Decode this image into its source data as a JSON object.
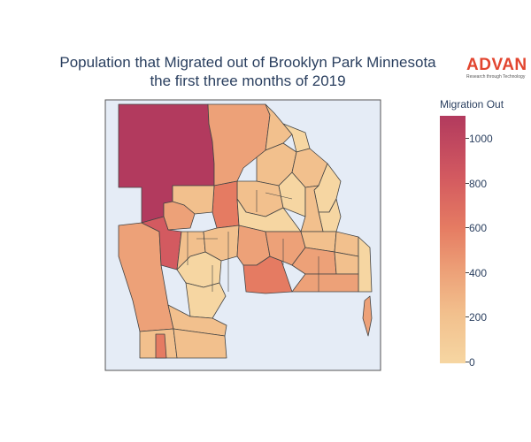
{
  "title": {
    "line1": "Population that Migrated out of Brooklyn Park Minnesota",
    "line2": "the first three months of 2019"
  },
  "logo": {
    "word": "ADVAN",
    "tagline": "Research through Technology",
    "color": "#e2452f"
  },
  "colorbar": {
    "title": "Migration Out",
    "ticks": [
      "1000",
      "800",
      "600",
      "400",
      "200",
      "0"
    ],
    "min": 0,
    "max": 1100,
    "colors": [
      "#f6d6a2",
      "#f2c08d",
      "#eda178",
      "#e57b62",
      "#d35a60",
      "#b23a5e"
    ]
  },
  "map": {
    "background": "#e5ecf6",
    "boundary_color": "#444444"
  }
}
